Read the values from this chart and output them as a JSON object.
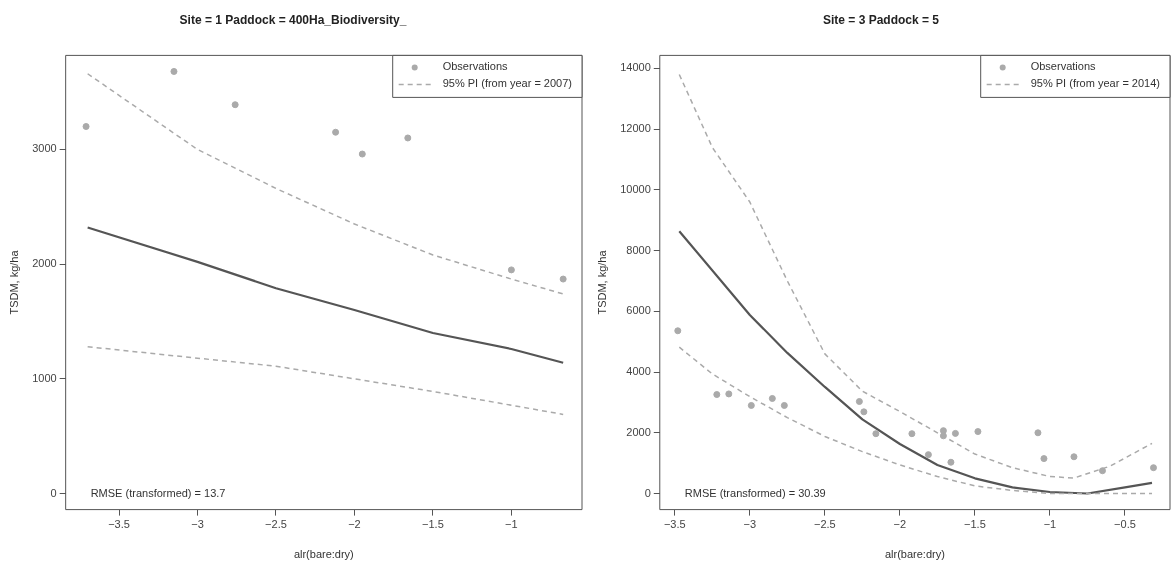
{
  "chart_data": [
    {
      "type": "scatter",
      "title": "Site = 1 Paddock = 400Ha_Biodiversity_",
      "xlabel": "alr(bare:dry)",
      "ylabel": "TSDM, kg/ha",
      "xlim": [
        -3.84,
        -0.55
      ],
      "ylim": [
        -140,
        3820
      ],
      "xticks": [
        -3.5,
        -3.0,
        -2.5,
        -2.0,
        -1.5,
        -1.0
      ],
      "yticks": [
        0,
        1000,
        2000,
        3000
      ],
      "grid": false,
      "legend": "top right",
      "annotations": [
        "RMSE (transformed) = 13.7"
      ],
      "series": [
        {
          "name": "Observations",
          "type": "scatter",
          "marker": "circle",
          "color": "#aaaaaa",
          "x": [
            -3.71,
            -3.15,
            -2.76,
            -2.12,
            -1.95,
            -1.66,
            -1.0,
            -0.67
          ],
          "values": [
            3200,
            3680,
            3390,
            3150,
            2960,
            3100,
            1950,
            1870
          ]
        },
        {
          "name": "95% PI (from year = 2007)",
          "type": "line",
          "marker": "none",
          "line_style": "dashed",
          "color": "#aaaaaa",
          "x": [
            -3.7,
            -3.0,
            -2.5,
            -2.0,
            -1.5,
            -1.0,
            -0.67
          ],
          "values": [
            3660,
            3000,
            2660,
            2350,
            2080,
            1870,
            1740
          ]
        },
        {
          "type": "line",
          "marker": "none",
          "line_style": "dashed",
          "color": "#aaaaaa",
          "x": [
            -3.7,
            -3.0,
            -2.5,
            -2.0,
            -1.5,
            -1.0,
            -0.67
          ],
          "values": [
            1280,
            1180,
            1110,
            1000,
            890,
            770,
            690
          ]
        },
        {
          "type": "line",
          "marker": "none",
          "line_style": "solid",
          "color": "#555555",
          "x": [
            -3.7,
            -3.0,
            -2.5,
            -2.0,
            -1.5,
            -1.0,
            -0.67
          ],
          "values": [
            2320,
            2020,
            1790,
            1600,
            1400,
            1260,
            1140
          ]
        }
      ]
    },
    {
      "type": "scatter",
      "title": "Site = 3 Paddock = 5",
      "xlabel": "alr(bare:dry)",
      "ylabel": "TSDM, kg/ha",
      "xlim": [
        -3.6,
        -0.2
      ],
      "ylim": [
        -530,
        14430
      ],
      "xticks": [
        -3.5,
        -3.0,
        -2.5,
        -2.0,
        -1.5,
        -1.0,
        -0.5
      ],
      "yticks": [
        0,
        2000,
        4000,
        6000,
        8000,
        10000,
        12000,
        14000
      ],
      "grid": false,
      "legend": "top right",
      "annotations": [
        "RMSE (transformed) = 30.39"
      ],
      "series": [
        {
          "name": "Observations",
          "type": "scatter",
          "marker": "circle",
          "color": "#aaaaaa",
          "x": [
            -3.48,
            -3.22,
            -3.14,
            -2.99,
            -2.85,
            -2.77,
            -2.27,
            -2.24,
            -2.16,
            -1.92,
            -1.81,
            -1.71,
            -1.71,
            -1.66,
            -1.63,
            -1.48,
            -1.08,
            -1.04,
            -0.84,
            -0.65,
            -0.31
          ],
          "values": [
            5360,
            3260,
            3280,
            2900,
            3130,
            2900,
            3030,
            2690,
            1970,
            1970,
            1280,
            2070,
            1900,
            1030,
            1980,
            2040,
            2000,
            1150,
            1210,
            750,
            850
          ]
        },
        {
          "name": "95% PI (from year = 2014)",
          "type": "line",
          "marker": "none",
          "line_style": "dashed",
          "color": "#aaaaaa",
          "x": [
            -3.47,
            -3.25,
            -3.0,
            -2.75,
            -2.5,
            -2.25,
            -2.0,
            -1.75,
            -1.5,
            -1.25,
            -1.0,
            -0.84,
            -0.6,
            -0.32
          ],
          "values": [
            13800,
            11400,
            9600,
            7000,
            4600,
            3370,
            2700,
            2000,
            1300,
            850,
            560,
            510,
            900,
            1650
          ]
        },
        {
          "type": "line",
          "marker": "none",
          "line_style": "dashed",
          "color": "#aaaaaa",
          "x": [
            -3.47,
            -3.25,
            -3.0,
            -2.75,
            -2.5,
            -2.25,
            -2.0,
            -1.75,
            -1.5,
            -1.25,
            -1.0,
            -0.5,
            -0.32
          ],
          "values": [
            4820,
            3940,
            3190,
            2500,
            1880,
            1380,
            940,
            560,
            250,
            100,
            0,
            0,
            0
          ]
        },
        {
          "type": "line",
          "marker": "none",
          "line_style": "solid",
          "color": "#555555",
          "x": [
            -3.47,
            -3.0,
            -2.75,
            -2.5,
            -2.25,
            -2.0,
            -1.75,
            -1.5,
            -1.25,
            -1.0,
            -0.75,
            -0.5,
            -0.32
          ],
          "values": [
            8640,
            5880,
            4630,
            3510,
            2440,
            1630,
            940,
            500,
            200,
            50,
            0,
            200,
            350
          ]
        }
      ]
    }
  ]
}
